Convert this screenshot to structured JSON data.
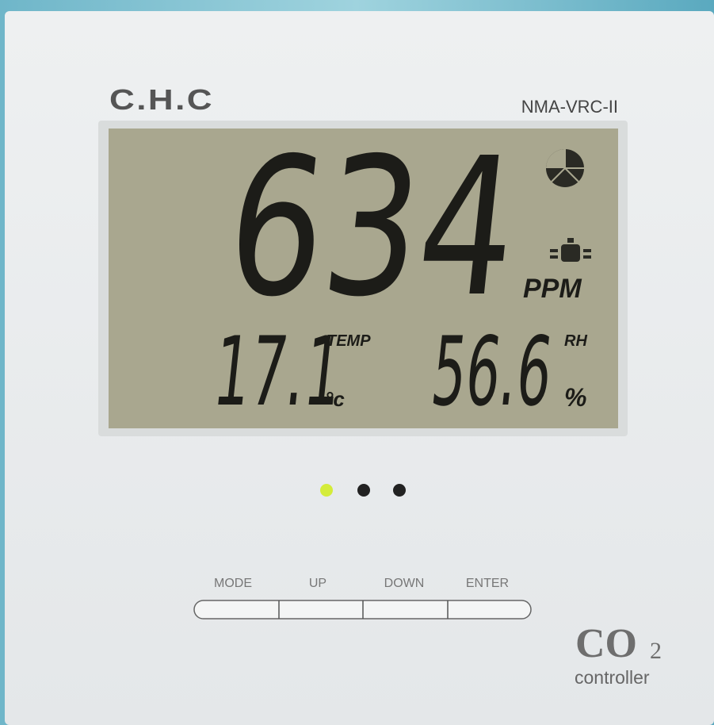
{
  "header": {
    "brand": "C.H.C",
    "model": "NMA-VRC-II"
  },
  "display": {
    "co2": "634",
    "co2_unit": "PPM",
    "temp_label": "TEMP",
    "temp": "17.1",
    "temp_unit": "°c",
    "rh_label": "RH",
    "rh": "56.6",
    "rh_unit": "%"
  },
  "buttons": [
    "MODE",
    "UP",
    "DOWN",
    "ENTER"
  ],
  "logo": {
    "main": "CO",
    "sub": "2",
    "caption": "controller"
  }
}
